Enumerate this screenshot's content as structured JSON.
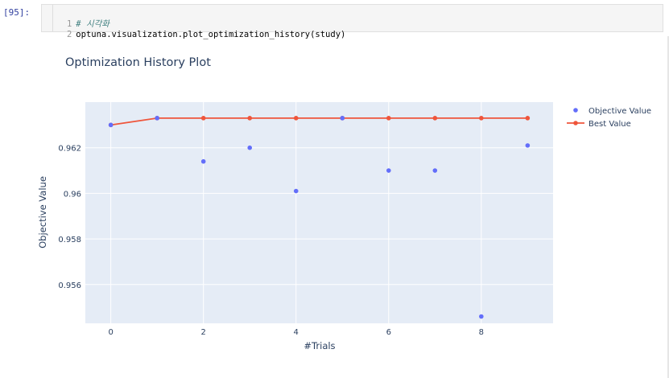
{
  "cell": {
    "prompt": "[95]:",
    "lines": [
      {
        "number": "1",
        "text": "# 시각화",
        "kind": "comment"
      },
      {
        "number": "2",
        "text": "optuna.visualization.plot_optimization_history(study)",
        "kind": "code"
      }
    ]
  },
  "chart_data": {
    "type": "scatter",
    "title": "Optimization History Plot",
    "xlabel": "#Trials",
    "ylabel": "Objective Value",
    "xlim": [
      -0.55,
      9.55
    ],
    "ylim": [
      0.9543,
      0.964
    ],
    "x_ticks": [
      0,
      2,
      4,
      6,
      8
    ],
    "y_ticks": [
      0.956,
      0.958,
      0.96,
      0.962
    ],
    "y_tick_labels": [
      "0.956",
      "0.958",
      "0.96",
      "0.962"
    ],
    "grid": true,
    "legend_position": "top-right",
    "series": [
      {
        "name": "Objective Value",
        "mode": "markers",
        "color": "#636efa",
        "x": [
          0,
          1,
          2,
          3,
          4,
          5,
          6,
          7,
          8,
          9
        ],
        "values": [
          0.963,
          0.9633,
          0.9614,
          0.962,
          0.9601,
          0.9633,
          0.961,
          0.961,
          0.9546,
          0.9621
        ]
      },
      {
        "name": "Best Value",
        "mode": "lines+markers",
        "color": "#ef553b",
        "x": [
          0,
          1,
          2,
          3,
          4,
          5,
          6,
          7,
          8,
          9
        ],
        "values": [
          0.963,
          0.9633,
          0.9633,
          0.9633,
          0.9633,
          0.9633,
          0.9633,
          0.9633,
          0.9633,
          0.9633
        ]
      }
    ]
  }
}
